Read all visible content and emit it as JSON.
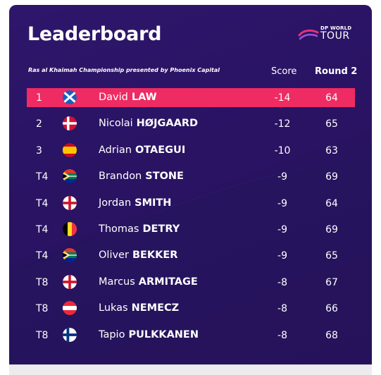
{
  "header": {
    "title": "Leaderboard",
    "subtitle": "Ras al Khaimah Championship presented by Phoenix Capital",
    "logo_top": "DP WORLD",
    "logo_main": "TOUR",
    "col_score": "Score",
    "col_round": "Round 2"
  },
  "colors": {
    "background": "#24115a",
    "highlight": "#ef2b63",
    "text": "#ffffff"
  },
  "rows": [
    {
      "pos": "1",
      "flag": "scotland-flag-icon",
      "first": "David",
      "last": "LAW",
      "score": "-14",
      "round": "64"
    },
    {
      "pos": "2",
      "flag": "denmark-flag-icon",
      "first": "Nicolai",
      "last": "HØJGAARD",
      "score": "-12",
      "round": "65"
    },
    {
      "pos": "3",
      "flag": "spain-flag-icon",
      "first": "Adrian",
      "last": "OTAEGUI",
      "score": "-10",
      "round": "63"
    },
    {
      "pos": "T4",
      "flag": "south-africa-flag-icon",
      "first": "Brandon",
      "last": "STONE",
      "score": "-9",
      "round": "69"
    },
    {
      "pos": "T4",
      "flag": "england-flag-icon",
      "first": "Jordan",
      "last": "SMITH",
      "score": "-9",
      "round": "64"
    },
    {
      "pos": "T4",
      "flag": "belgium-flag-icon",
      "first": "Thomas",
      "last": "DETRY",
      "score": "-9",
      "round": "69"
    },
    {
      "pos": "T4",
      "flag": "south-africa-flag-icon",
      "first": "Oliver",
      "last": "BEKKER",
      "score": "-9",
      "round": "65"
    },
    {
      "pos": "T8",
      "flag": "england-flag-icon",
      "first": "Marcus",
      "last": "ARMITAGE",
      "score": "-8",
      "round": "67"
    },
    {
      "pos": "T8",
      "flag": "austria-flag-icon",
      "first": "Lukas",
      "last": "NEMECZ",
      "score": "-8",
      "round": "66"
    },
    {
      "pos": "T8",
      "flag": "finland-flag-icon",
      "first": "Tapio",
      "last": "PULKKANEN",
      "score": "-8",
      "round": "68"
    }
  ]
}
